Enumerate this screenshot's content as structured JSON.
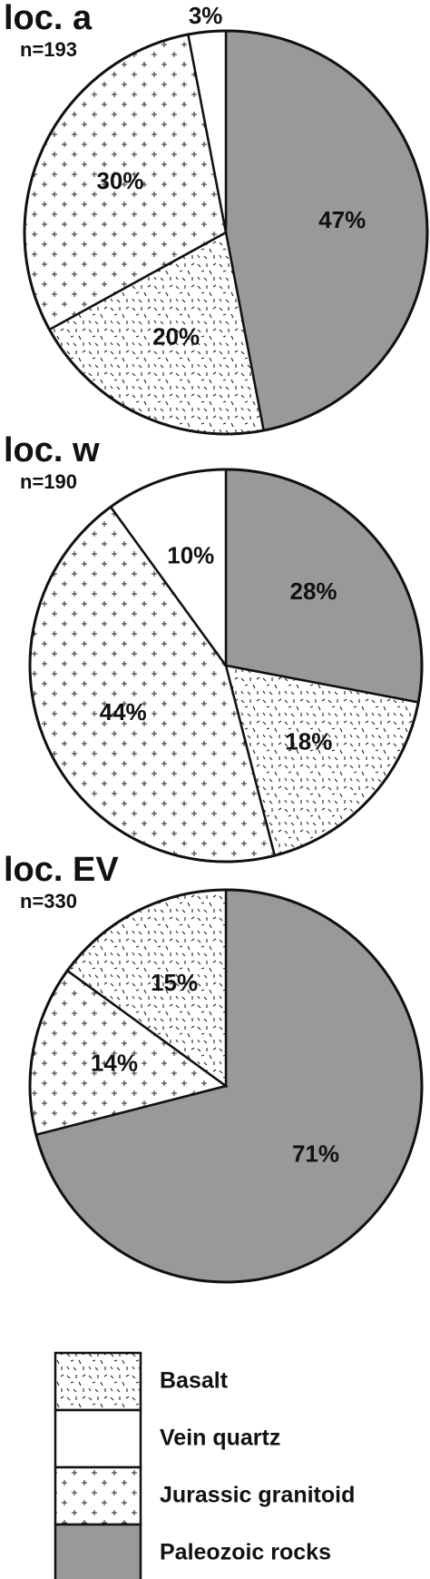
{
  "chart_data": [
    {
      "type": "pie",
      "title": "loc. a",
      "subtitle": "n=193",
      "categories": [
        "Paleozoic rocks",
        "Basalt",
        "Jurassic granitoid",
        "Vein quartz"
      ],
      "values": [
        47,
        20,
        30,
        3
      ],
      "value_labels": [
        "47%",
        "20%",
        "30%",
        "3%"
      ]
    },
    {
      "type": "pie",
      "title": "loc. w",
      "subtitle": "n=190",
      "categories": [
        "Paleozoic rocks",
        "Basalt",
        "Jurassic granitoid",
        "Vein quartz"
      ],
      "values": [
        28,
        18,
        44,
        10
      ],
      "value_labels": [
        "28%",
        "18%",
        "44%",
        "10%"
      ]
    },
    {
      "type": "pie",
      "title": "loc. EV",
      "subtitle": "n=330",
      "categories": [
        "Paleozoic rocks",
        "Jurassic granitoid",
        "Basalt"
      ],
      "values": [
        71,
        14,
        15
      ],
      "value_labels": [
        "71%",
        "14%",
        "15%"
      ]
    }
  ],
  "legend": {
    "labels": [
      "Basalt",
      "Vein quartz",
      "Jurassic granitoid",
      "Paleozoic rocks"
    ],
    "patterns": [
      "dashes",
      "white",
      "plus",
      "gray"
    ]
  }
}
